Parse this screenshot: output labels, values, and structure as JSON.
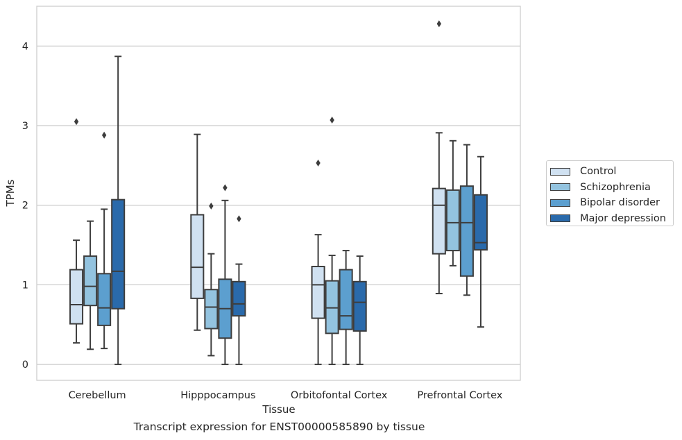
{
  "caption": "Transcript expression for ENST00000585890 by tissue",
  "chart_data": {
    "type": "box",
    "title": "",
    "xlabel": "Tissue",
    "ylabel": "TPMs",
    "ylim": [
      -0.2,
      4.5
    ],
    "yticks": [
      0,
      1,
      2,
      3,
      4
    ],
    "grid": "horizontal",
    "legend_position": "right",
    "categories": [
      "Cerebellum",
      "Hipppocampus",
      "Orbitofontal Cortex",
      "Prefrontal Cortex"
    ],
    "series": [
      {
        "name": "Control",
        "color": "#d0e1f1",
        "boxes": [
          {
            "whislo": 0.27,
            "q1": 0.51,
            "med": 0.75,
            "q3": 1.19,
            "whishi": 1.56,
            "fliers": [
              3.05
            ]
          },
          {
            "whislo": 0.43,
            "q1": 0.83,
            "med": 1.22,
            "q3": 1.88,
            "whishi": 2.89,
            "fliers": []
          },
          {
            "whislo": 0.0,
            "q1": 0.58,
            "med": 1.0,
            "q3": 1.23,
            "whishi": 1.63,
            "fliers": [
              2.53
            ]
          },
          {
            "whislo": 0.89,
            "q1": 1.39,
            "med": 2.0,
            "q3": 2.21,
            "whishi": 2.91,
            "fliers": [
              4.28
            ]
          }
        ]
      },
      {
        "name": "Schizophrenia",
        "color": "#93c3df",
        "boxes": [
          {
            "whislo": 0.19,
            "q1": 0.74,
            "med": 0.98,
            "q3": 1.36,
            "whishi": 1.8,
            "fliers": []
          },
          {
            "whislo": 0.11,
            "q1": 0.45,
            "med": 0.72,
            "q3": 0.94,
            "whishi": 1.39,
            "fliers": [
              1.99
            ]
          },
          {
            "whislo": 0.0,
            "q1": 0.39,
            "med": 0.71,
            "q3": 1.05,
            "whishi": 1.37,
            "fliers": [
              3.07
            ]
          },
          {
            "whislo": 1.24,
            "q1": 1.43,
            "med": 1.78,
            "q3": 2.19,
            "whishi": 2.81,
            "fliers": []
          }
        ]
      },
      {
        "name": "Bipolar disorder",
        "color": "#5c9fcf",
        "boxes": [
          {
            "whislo": 0.2,
            "q1": 0.49,
            "med": 0.71,
            "q3": 1.14,
            "whishi": 1.95,
            "fliers": [
              2.88
            ]
          },
          {
            "whislo": 0.0,
            "q1": 0.33,
            "med": 0.7,
            "q3": 1.07,
            "whishi": 2.06,
            "fliers": [
              2.22
            ]
          },
          {
            "whislo": 0.0,
            "q1": 0.44,
            "med": 0.61,
            "q3": 1.19,
            "whishi": 1.43,
            "fliers": []
          },
          {
            "whislo": 0.87,
            "q1": 1.11,
            "med": 1.78,
            "q3": 2.24,
            "whishi": 2.76,
            "fliers": []
          }
        ]
      },
      {
        "name": "Major depression",
        "color": "#2a6aab",
        "boxes": [
          {
            "whislo": 0.0,
            "q1": 0.7,
            "med": 1.17,
            "q3": 2.07,
            "whishi": 3.87,
            "fliers": []
          },
          {
            "whislo": 0.0,
            "q1": 0.61,
            "med": 0.76,
            "q3": 1.04,
            "whishi": 1.26,
            "fliers": [
              1.83
            ]
          },
          {
            "whislo": 0.0,
            "q1": 0.42,
            "med": 0.78,
            "q3": 1.04,
            "whishi": 1.36,
            "fliers": []
          },
          {
            "whislo": 0.47,
            "q1": 1.44,
            "med": 1.53,
            "q3": 2.13,
            "whishi": 2.61,
            "fliers": []
          }
        ]
      }
    ]
  }
}
